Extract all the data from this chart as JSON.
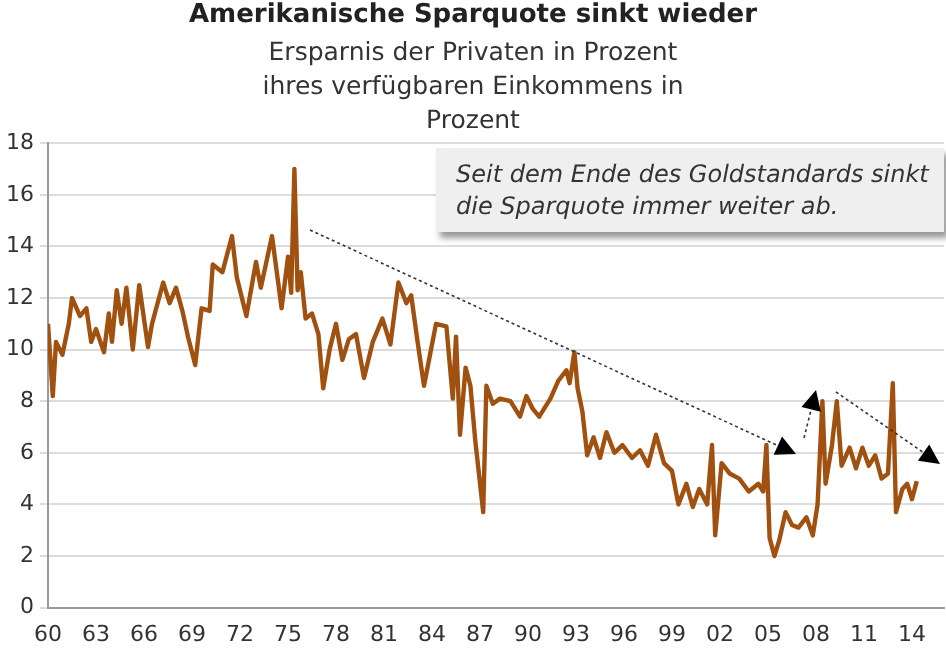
{
  "chart_data": {
    "type": "line",
    "title": "Amerikanische Sparquote sinkt wieder",
    "subtitle": "Ersparnis der Privaten in Prozent ihres verfügbaren Einkommens in Prozent",
    "annotations": [
      "Seit dem Ende des Goldstandards sinkt die Sparquote immer weiter ab."
    ],
    "x": [
      1960,
      1960.3,
      1960.5,
      1960.9,
      1961.3,
      1961.5,
      1962,
      1962.4,
      1962.7,
      1963,
      1963.5,
      1963.8,
      1964,
      1964.3,
      1964.6,
      1964.9,
      1965.3,
      1965.7,
      1966.25,
      1966.5,
      1967.2,
      1967.6,
      1968,
      1968.4,
      1968.75,
      1969.2,
      1969.6,
      1970.1,
      1970.3,
      1970.9,
      1971.5,
      1971.8,
      1972.4,
      1973,
      1973.3,
      1974,
      1974.6,
      1975,
      1975.2,
      1975.4,
      1975.6,
      1975.8,
      1976.1,
      1976.5,
      1976.9,
      1977.2,
      1977.6,
      1978,
      1978.4,
      1978.8,
      1979.25,
      1979.75,
      1980.3,
      1980.9,
      1981.4,
      1981.9,
      1982.4,
      1982.7,
      1983.1,
      1983.5,
      1984.25,
      1984.9,
      1985.3,
      1985.5,
      1985.75,
      1986.1,
      1986.4,
      1986.7,
      1987.2,
      1987.4,
      1987.8,
      1988.25,
      1988.9,
      1989.5,
      1989.9,
      1990.3,
      1990.7,
      1991.4,
      1991.9,
      1992.4,
      1992.6,
      1992.9,
      1993.1,
      1993.4,
      1993.7,
      1994.1,
      1994.5,
      1994.9,
      1995.4,
      1995.9,
      1996.5,
      1997,
      1997.5,
      1998,
      1998.5,
      1999,
      1999.4,
      1999.9,
      2000.3,
      2000.7,
      2001.2,
      2001.5,
      2001.7,
      2002.1,
      2002.6,
      2003.2,
      2003.8,
      2004.4,
      2004.7,
      2004.9,
      2005.1,
      2005.4,
      2005.7,
      2006.1,
      2006.5,
      2006.9,
      2007.4,
      2007.8,
      2008.1,
      2008.4,
      2008.6,
      2009,
      2009.3,
      2009.6,
      2010.1,
      2010.5,
      2010.9,
      2011.3,
      2011.7,
      2012.1,
      2012.5,
      2012.8,
      2013,
      2013.4,
      2013.7,
      2014,
      2014.3
    ],
    "series": [
      {
        "color": "#a0500f",
        "values": [
          11.0,
          8.2,
          10.3,
          9.8,
          11.0,
          12.0,
          11.3,
          11.6,
          10.3,
          10.8,
          9.9,
          11.4,
          10.3,
          12.3,
          11.0,
          12.4,
          10.0,
          12.5,
          10.1,
          11.0,
          12.6,
          11.8,
          12.4,
          11.5,
          10.5,
          9.4,
          11.6,
          11.5,
          13.3,
          13.0,
          14.4,
          12.8,
          11.3,
          13.4,
          12.4,
          14.4,
          11.6,
          13.6,
          12.2,
          17.0,
          12.3,
          13.0,
          11.2,
          11.4,
          10.6,
          8.5,
          10.0,
          11.0,
          9.6,
          10.4,
          10.6,
          8.9,
          10.3,
          11.2,
          10.2,
          12.6,
          11.8,
          12.1,
          10.3,
          8.6,
          11.0,
          10.9,
          8.1,
          10.5,
          6.7,
          9.3,
          8.6,
          6.5,
          3.7,
          8.6,
          7.9,
          8.1,
          8.0,
          7.4,
          8.2,
          7.7,
          7.4,
          8.1,
          8.8,
          9.2,
          8.7,
          9.9,
          8.5,
          7.6,
          5.9,
          6.6,
          5.8,
          6.8,
          6.0,
          6.3,
          5.8,
          6.1,
          5.5,
          6.7,
          5.6,
          5.3,
          4.0,
          4.8,
          3.9,
          4.6,
          4.0,
          6.3,
          2.8,
          5.6,
          5.2,
          5.0,
          4.5,
          4.8,
          4.5,
          6.3,
          2.7,
          2.0,
          2.6,
          3.7,
          3.2,
          3.1,
          3.5,
          2.8,
          4.0,
          8.0,
          4.8,
          6.3,
          8.0,
          5.5,
          6.2,
          5.4,
          6.2,
          5.5,
          5.9,
          5.0,
          5.2,
          8.7,
          3.7,
          4.6,
          4.8,
          4.2,
          4.9
        ]
      }
    ],
    "xlim": [
      1960,
      2016
    ],
    "xticks": [
      {
        "value": 1960,
        "label": "60"
      },
      {
        "value": 1963,
        "label": "63"
      },
      {
        "value": 1966,
        "label": "66"
      },
      {
        "value": 1969,
        "label": "69"
      },
      {
        "value": 1972,
        "label": "72"
      },
      {
        "value": 1975,
        "label": "75"
      },
      {
        "value": 1978,
        "label": "78"
      },
      {
        "value": 1981,
        "label": "81"
      },
      {
        "value": 1984,
        "label": "84"
      },
      {
        "value": 1987,
        "label": "87"
      },
      {
        "value": 1990,
        "label": "90"
      },
      {
        "value": 1993,
        "label": "93"
      },
      {
        "value": 1996,
        "label": "96"
      },
      {
        "value": 1999,
        "label": "99"
      },
      {
        "value": 2002,
        "label": "02"
      },
      {
        "value": 2005,
        "label": "05"
      },
      {
        "value": 2008,
        "label": "08"
      },
      {
        "value": 2011,
        "label": "11"
      },
      {
        "value": 2014,
        "label": "14"
      }
    ],
    "ylim": [
      0,
      18
    ],
    "yticks": [
      0,
      2,
      4,
      6,
      8,
      10,
      12,
      14,
      16,
      18
    ],
    "grid": "y",
    "legend": false,
    "marker": "none",
    "line_style": "solid"
  }
}
